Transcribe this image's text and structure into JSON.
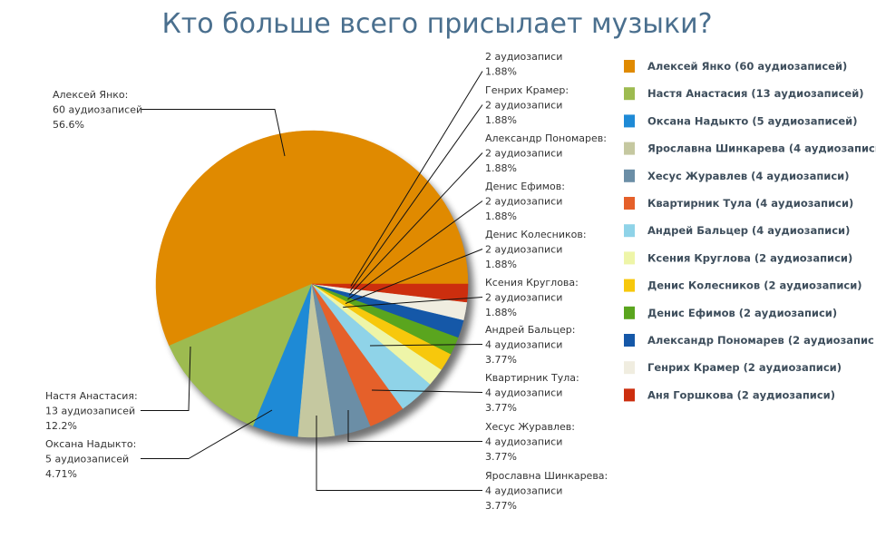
{
  "chart_data": {
    "type": "pie",
    "title": "Кто больше всего присылает музыки?",
    "slices": [
      {
        "name": "Алексей Янко",
        "count": 60,
        "count_label": "60 аудиозаписей",
        "percent": 56.6,
        "percent_label": "56.6%",
        "legend": "Алексей Янко (60 аудиозаписей)",
        "color": "#e08a00",
        "label": "Алексей Янко:"
      },
      {
        "name": "Настя Анастасия",
        "count": 13,
        "count_label": "13 аудиозаписей",
        "percent": 12.2,
        "percent_label": "12.2%",
        "legend": "Настя Анастасия (13 аудиозаписей)",
        "color": "#9dbb50",
        "label": "Настя Анастасия:"
      },
      {
        "name": "Оксана Надыкто",
        "count": 5,
        "count_label": "5 аудиозаписей",
        "percent": 4.71,
        "percent_label": "4.71%",
        "legend": "Оксана Надыкто (5 аудиозаписей)",
        "color": "#1e8ad6",
        "label": "Оксана Надыкто:"
      },
      {
        "name": "Ярославна Шинкарева",
        "count": 4,
        "count_label": "4 аудиозаписи",
        "percent": 3.77,
        "percent_label": "3.77%",
        "legend": "Ярославна Шинкарева (4 аудиозаписи",
        "color": "#c5c8a0",
        "label": "Ярославна Шинкарева:"
      },
      {
        "name": "Хесус Журавлев",
        "count": 4,
        "count_label": "4 аудиозаписи",
        "percent": 3.77,
        "percent_label": "3.77%",
        "legend": "Хесус Журавлев (4 аудиозаписи)",
        "color": "#6b8ea6",
        "label": "Хесус Журавлев:"
      },
      {
        "name": "Квартирник Тула",
        "count": 4,
        "count_label": "4 аудиозаписи",
        "percent": 3.77,
        "percent_label": "3.77%",
        "legend": "Квартирник Тула (4 аудиозаписи)",
        "color": "#e5602a",
        "label": "Квартирник Тула:"
      },
      {
        "name": "Андрей Бальцер",
        "count": 4,
        "count_label": "4 аудиозаписи",
        "percent": 3.77,
        "percent_label": "3.77%",
        "legend": "Андрей Бальцер (4 аудиозаписи)",
        "color": "#8fd3e8",
        "label": "Андрей Бальцер:"
      },
      {
        "name": "Ксения Круглова",
        "count": 2,
        "count_label": "2 аудиозаписи",
        "percent": 1.88,
        "percent_label": "1.88%",
        "legend": "Ксения Круглова (2 аудиозаписи)",
        "color": "#eef5a8",
        "label": "Ксения Круглова:"
      },
      {
        "name": "Денис Колесников",
        "count": 2,
        "count_label": "2 аудиозаписи",
        "percent": 1.88,
        "percent_label": "1.88%",
        "legend": "Денис Колесников (2 аудиозаписи)",
        "color": "#f7c80c",
        "label": "Денис Колесников:"
      },
      {
        "name": "Денис Ефимов",
        "count": 2,
        "count_label": "2 аудиозаписи",
        "percent": 1.88,
        "percent_label": "1.88%",
        "legend": "Денис Ефимов (2 аудиозаписи)",
        "color": "#5aa51e",
        "label": "Денис Ефимов:"
      },
      {
        "name": "Александр Пономарев",
        "count": 2,
        "count_label": "2 аудиозаписи",
        "percent": 1.88,
        "percent_label": "1.88%",
        "legend": "Александр Пономарев (2 аудиозапис",
        "color": "#1558a8",
        "label": "Александр Пономарев:"
      },
      {
        "name": "Генрих Крамер",
        "count": 2,
        "count_label": "2 аудиозаписи",
        "percent": 1.88,
        "percent_label": "1.88%",
        "legend": "Генрих Крамер (2 аудиозаписи)",
        "color": "#f0ede0",
        "label": "Генрих Крамер:"
      },
      {
        "name": "Аня Горшкова",
        "count": 2,
        "count_label": "2 аудиозаписи",
        "percent": 1.88,
        "percent_label": "1.88%",
        "legend": "Аня Горшкова (2 аудиозаписи)",
        "color": "#cc2e0e",
        "label": ""
      }
    ],
    "legend_placement": "right",
    "start_angle": "east, counter-clockwise"
  }
}
